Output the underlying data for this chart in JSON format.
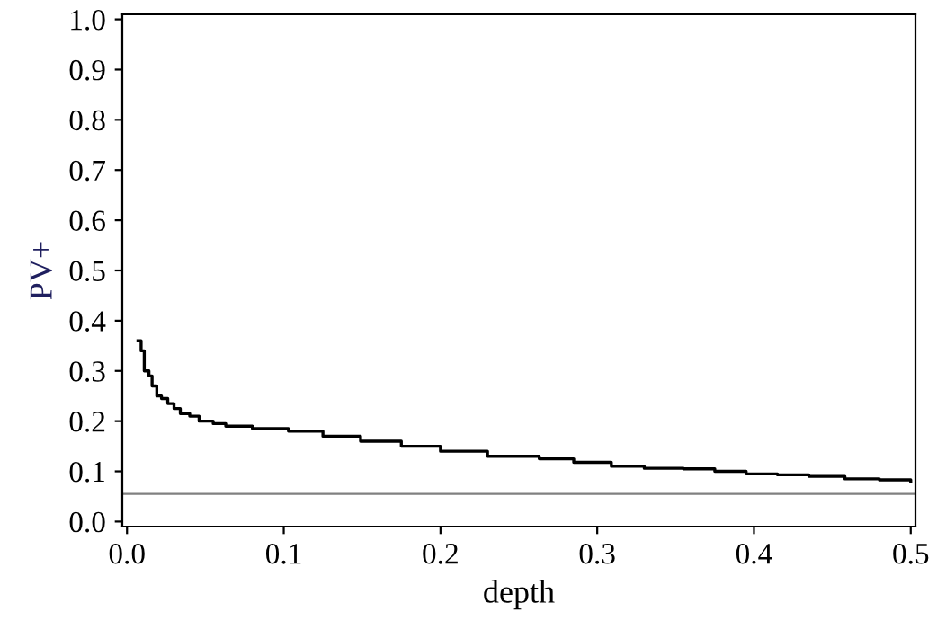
{
  "chart_data": {
    "type": "step",
    "xlabel": "depth",
    "ylabel": "PV+",
    "x": [
      0.007,
      0.009,
      0.011,
      0.014,
      0.016,
      0.019,
      0.022,
      0.026,
      0.03,
      0.034,
      0.04,
      0.046,
      0.055,
      0.063,
      0.08,
      0.103,
      0.125,
      0.149,
      0.175,
      0.2,
      0.23,
      0.263,
      0.285,
      0.309,
      0.33,
      0.355,
      0.375,
      0.395,
      0.415,
      0.435,
      0.458,
      0.48,
      0.5
    ],
    "series": [
      {
        "color": "#000000",
        "values": [
          0.36,
          0.34,
          0.3,
          0.29,
          0.27,
          0.25,
          0.245,
          0.235,
          0.225,
          0.215,
          0.21,
          0.2,
          0.195,
          0.19,
          0.185,
          0.18,
          0.17,
          0.16,
          0.15,
          0.14,
          0.13,
          0.125,
          0.118,
          0.11,
          0.106,
          0.105,
          0.1,
          0.095,
          0.093,
          0.09,
          0.085,
          0.083,
          0.08
        ]
      }
    ],
    "xlim": [
      -0.003,
      0.503
    ],
    "ylim": [
      -0.01,
      1.01
    ],
    "xticks": [
      {
        "value": 0,
        "label": "0.0"
      },
      0.1,
      0.2,
      0.3,
      0.4,
      0.5
    ],
    "yticks": [
      {
        "value": 0,
        "label": "0.0"
      },
      0.1,
      0.2,
      0.3,
      0.4,
      0.5,
      0.6,
      0.7,
      0.8,
      0.9,
      {
        "value": 1,
        "label": "1.0"
      }
    ],
    "ref_lines": [
      {
        "axis": "y",
        "value": 0.055,
        "color": "#808080"
      }
    ],
    "grid": false,
    "legend": false
  }
}
